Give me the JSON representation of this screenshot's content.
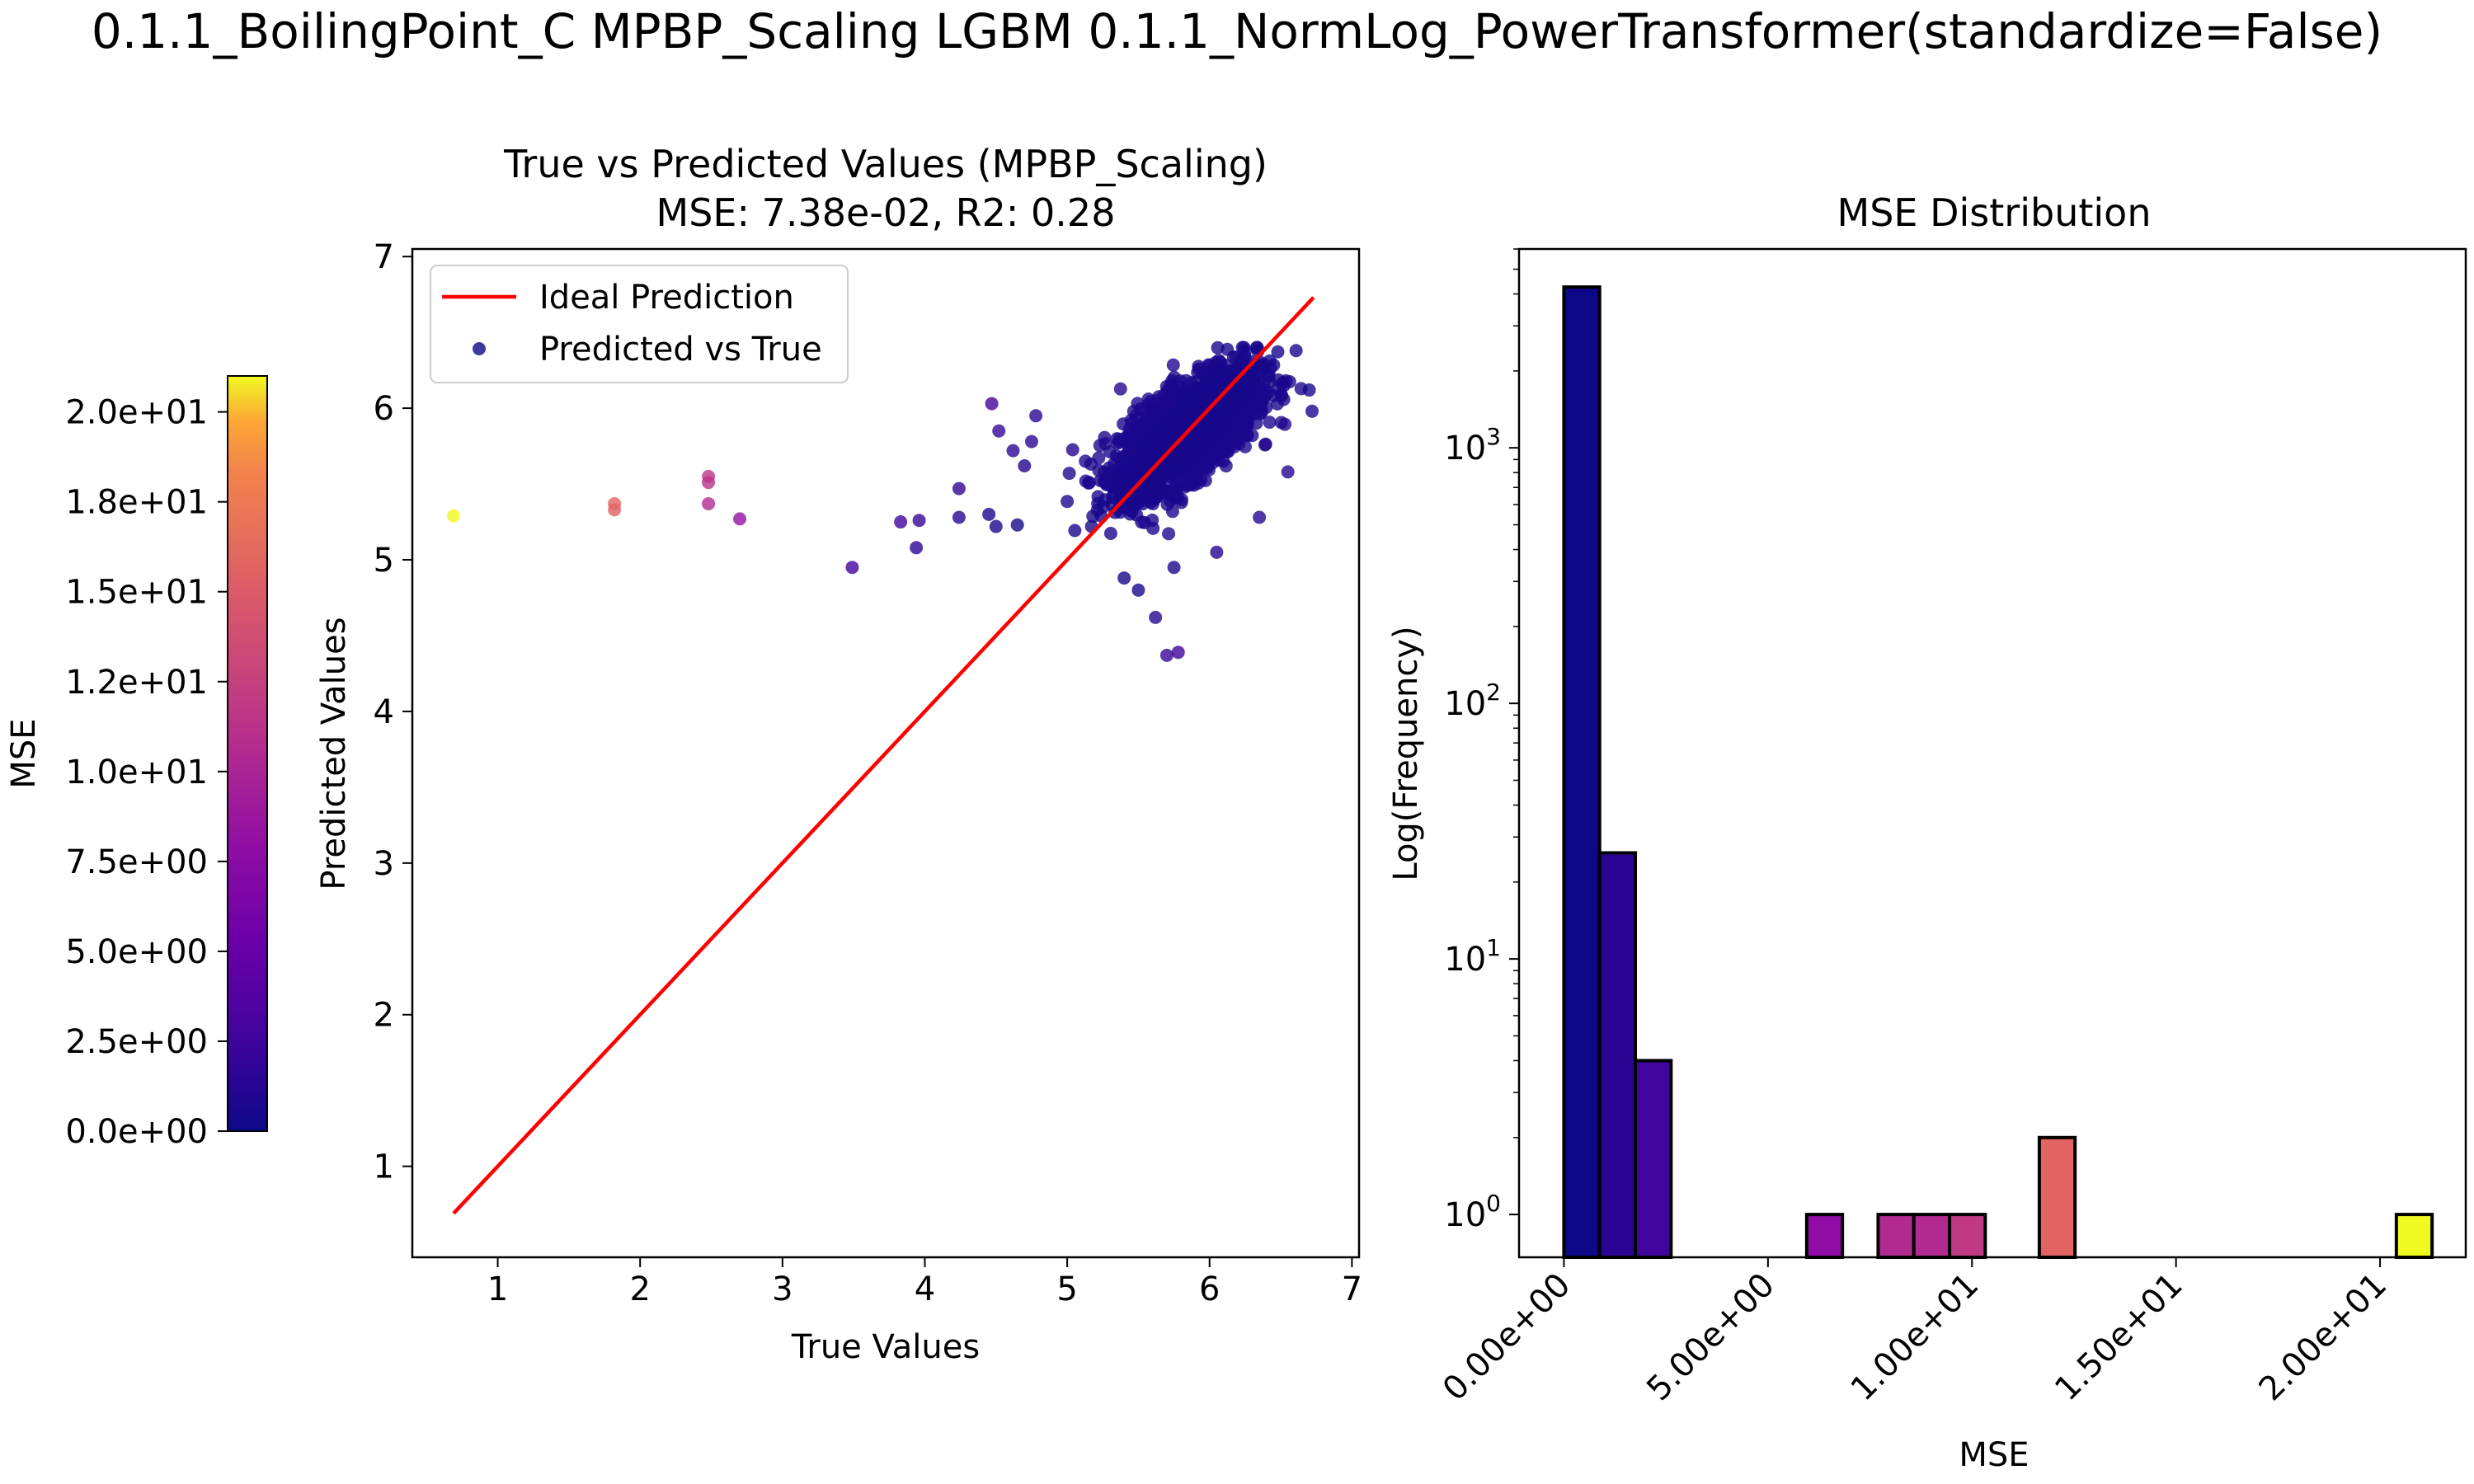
{
  "suptitle": "0.1.1_BoilingPoint_C MPBP_Scaling LGBM 0.1.1_NormLog_PowerTransformer(standardize=False)",
  "colorbar": {
    "label": "MSE",
    "range": [
      0,
      21
    ],
    "ticks": [
      0,
      2.5,
      5,
      7.5,
      10,
      12.5,
      15,
      17.5,
      20
    ],
    "tick_labels": [
      "0.0e+00",
      "2.5e+00",
      "5.0e+00",
      "7.5e+00",
      "1.0e+01",
      "1.2e+01",
      "1.5e+01",
      "1.8e+01",
      "2.0e+01"
    ],
    "colormap": "plasma"
  },
  "chart_data": [
    {
      "type": "scatter",
      "title": "True vs Predicted Values (MPBP_Scaling)",
      "subtitle": "MSE: 7.38e-02, R2: 0.28",
      "xlabel": "True Values",
      "ylabel": "Predicted Values",
      "xlim": [
        0.4,
        7.05
      ],
      "ylim": [
        0.4,
        7.05
      ],
      "xticks": [
        1,
        2,
        3,
        4,
        5,
        6,
        7
      ],
      "yticks": [
        1,
        2,
        3,
        4,
        5,
        6,
        7
      ],
      "grid": false,
      "legend": {
        "placement": "top-left",
        "entries": [
          "Ideal Prediction",
          "Predicted vs True"
        ]
      },
      "ideal_line": {
        "name": "Ideal Prediction",
        "color": "#ff0000",
        "x": [
          0.69,
          6.73
        ],
        "y": [
          0.69,
          6.73
        ]
      },
      "cluster": {
        "name": "Predicted vs True",
        "x_center": 5.85,
        "y_center": 5.85,
        "x_range": [
          5.0,
          6.75
        ],
        "y_range": [
          4.35,
          6.4
        ],
        "approx_count": 4290
      },
      "outliers": [
        {
          "x": 0.69,
          "y": 5.29,
          "mse": 21.0
        },
        {
          "x": 1.82,
          "y": 5.33,
          "mse": 12.4
        },
        {
          "x": 1.82,
          "y": 5.37,
          "mse": 12.6
        },
        {
          "x": 2.48,
          "y": 5.51,
          "mse": 9.1
        },
        {
          "x": 2.48,
          "y": 5.55,
          "mse": 9.3
        },
        {
          "x": 2.48,
          "y": 5.37,
          "mse": 8.4
        },
        {
          "x": 2.7,
          "y": 5.27,
          "mse": 6.6
        },
        {
          "x": 3.49,
          "y": 4.95,
          "mse": 2.1
        },
        {
          "x": 3.83,
          "y": 5.25,
          "mse": 2.0
        },
        {
          "x": 3.94,
          "y": 5.08,
          "mse": 1.3
        },
        {
          "x": 3.96,
          "y": 5.26,
          "mse": 1.7
        },
        {
          "x": 4.24,
          "y": 5.28,
          "mse": 1.1
        },
        {
          "x": 4.24,
          "y": 5.47,
          "mse": 1.5
        },
        {
          "x": 4.45,
          "y": 5.3,
          "mse": 0.7
        },
        {
          "x": 4.47,
          "y": 6.03,
          "mse": 2.4
        },
        {
          "x": 4.5,
          "y": 5.22,
          "mse": 0.6
        },
        {
          "x": 4.65,
          "y": 5.23,
          "mse": 0.4
        },
        {
          "x": 4.52,
          "y": 5.85,
          "mse": 1.8
        },
        {
          "x": 4.7,
          "y": 5.62,
          "mse": 0.9
        },
        {
          "x": 4.78,
          "y": 5.95,
          "mse": 1.3
        },
        {
          "x": 4.75,
          "y": 5.78,
          "mse": 1.1
        },
        {
          "x": 4.62,
          "y": 5.72,
          "mse": 1.2
        },
        {
          "x": 5.7,
          "y": 4.37,
          "mse": 1.8
        },
        {
          "x": 5.78,
          "y": 4.39,
          "mse": 2.0
        },
        {
          "x": 5.62,
          "y": 4.62,
          "mse": 1.0
        },
        {
          "x": 5.4,
          "y": 4.88,
          "mse": 0.3
        },
        {
          "x": 5.5,
          "y": 4.8,
          "mse": 0.4
        },
        {
          "x": 5.75,
          "y": 4.95,
          "mse": 0.6
        },
        {
          "x": 6.05,
          "y": 5.05,
          "mse": 0.9
        },
        {
          "x": 6.35,
          "y": 5.28,
          "mse": 1.0
        },
        {
          "x": 6.55,
          "y": 5.58,
          "mse": 0.9
        },
        {
          "x": 6.7,
          "y": 6.12,
          "mse": 0.4
        },
        {
          "x": 6.72,
          "y": 5.98,
          "mse": 0.6
        }
      ]
    },
    {
      "type": "bar",
      "title": "MSE Distribution",
      "xlabel": "MSE",
      "ylabel": "Log(Frequency)",
      "yscale": "log",
      "xlim": [
        -1.1,
        22.1
      ],
      "ylim": [
        0.68,
        6000
      ],
      "grid": false,
      "bin_width": 0.875,
      "bins": [
        {
          "x0": 0.0,
          "count": 4259,
          "color": "#0d0887"
        },
        {
          "x0": 0.875,
          "count": 26,
          "color": "#2a0593"
        },
        {
          "x0": 1.75,
          "count": 4,
          "color": "#41049d"
        },
        {
          "x0": 5.95,
          "count": 1,
          "color": "#8f0da4"
        },
        {
          "x0": 7.7,
          "count": 1,
          "color": "#b12a90"
        },
        {
          "x0": 8.575,
          "count": 1,
          "color": "#b12a90"
        },
        {
          "x0": 9.45,
          "count": 1,
          "color": "#bf3984"
        },
        {
          "x0": 11.65,
          "count": 2,
          "color": "#e16462"
        },
        {
          "x0": 20.4,
          "count": 1,
          "color": "#f0f921"
        }
      ],
      "xticks": [
        0,
        5,
        10,
        15,
        20
      ],
      "xtick_labels": [
        "0.00e+00",
        "5.00e+00",
        "1.00e+01",
        "1.50e+01",
        "2.00e+01"
      ],
      "yticks": [
        1,
        10,
        100,
        1000
      ],
      "ytick_labels": [
        {
          "base": "10",
          "exp": "0"
        },
        {
          "base": "10",
          "exp": "1"
        },
        {
          "base": "10",
          "exp": "2"
        },
        {
          "base": "10",
          "exp": "3"
        }
      ]
    }
  ]
}
